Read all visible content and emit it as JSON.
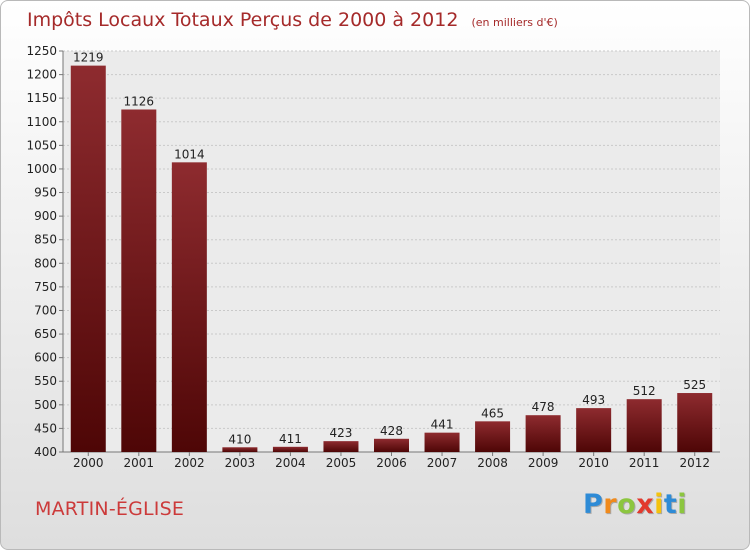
{
  "chart_data": {
    "type": "bar",
    "title": "Impôts Locaux Totaux Perçus de 2000 à 2012",
    "subtitle": "(en milliers d'€)",
    "categories": [
      "2000",
      "2001",
      "2002",
      "2003",
      "2004",
      "2005",
      "2006",
      "2007",
      "2008",
      "2009",
      "2010",
      "2011",
      "2012"
    ],
    "values": [
      1219,
      1126,
      1014,
      410,
      411,
      423,
      428,
      441,
      465,
      478,
      493,
      512,
      525
    ],
    "ylim": [
      400,
      1250
    ],
    "ytick_step": 50,
    "grid": true,
    "bar_color_top": "#8e2b2f",
    "bar_color_bottom": "#4e0606"
  },
  "location": "MARTIN-ÉGLISE",
  "brand": {
    "letters": [
      "P",
      "r",
      "o",
      "x",
      "i",
      "t",
      "i"
    ],
    "colors": [
      "#2e8bd6",
      "#f08a1c",
      "#8cc63f",
      "#e23a2e",
      "#f4c20d",
      "#2e8bd6",
      "#8cc63f"
    ]
  }
}
